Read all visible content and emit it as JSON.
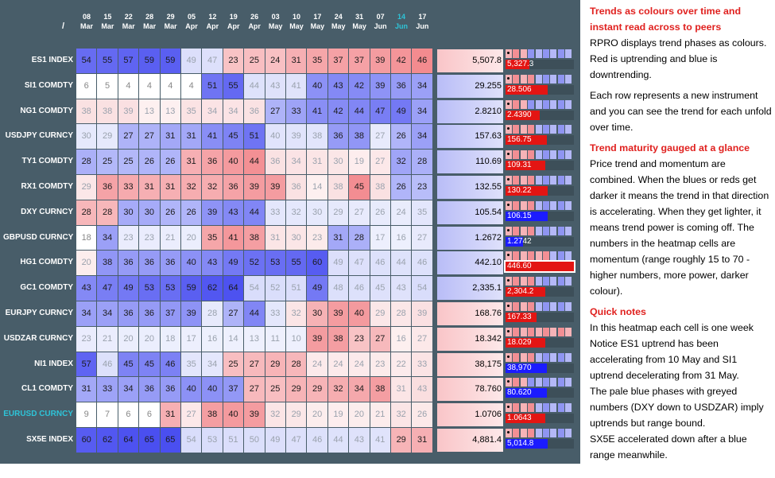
{
  "header": {
    "corner": "/",
    "dates": [
      {
        "day": "08",
        "month": "Mar"
      },
      {
        "day": "15",
        "month": "Mar"
      },
      {
        "day": "22",
        "month": "Mar"
      },
      {
        "day": "28",
        "month": "Mar"
      },
      {
        "day": "29",
        "month": "Mar"
      },
      {
        "day": "05",
        "month": "Apr"
      },
      {
        "day": "12",
        "month": "Apr"
      },
      {
        "day": "19",
        "month": "Apr"
      },
      {
        "day": "26",
        "month": "Apr"
      },
      {
        "day": "03",
        "month": "May"
      },
      {
        "day": "10",
        "month": "May"
      },
      {
        "day": "17",
        "month": "May"
      },
      {
        "day": "24",
        "month": "May"
      },
      {
        "day": "31",
        "month": "May"
      },
      {
        "day": "07",
        "month": "Jun"
      },
      {
        "day": "14",
        "month": "Jun"
      },
      {
        "day": "17",
        "month": "Jun"
      }
    ],
    "current_index": 15
  },
  "rows": [
    {
      "label": "ES1 INDEX",
      "values": [
        54,
        55,
        57,
        59,
        59,
        49,
        47,
        23,
        25,
        24,
        31,
        35,
        37,
        37,
        39,
        42,
        46
      ],
      "trend": [
        "u",
        "u",
        "u",
        "u",
        "u",
        "U",
        "U",
        "d",
        "d",
        "d",
        "d",
        "d",
        "d",
        "d",
        "d",
        "d",
        "d"
      ],
      "price": "5,507.8",
      "bar_text": "5,327.3",
      "bar_dir": "red",
      "bar_pct": 0.35,
      "sq": [
        "r",
        "r",
        "r",
        "b",
        "b",
        "b",
        "b",
        "b",
        "b"
      ]
    },
    {
      "label": "SI1 COMDTY",
      "values": [
        6,
        5,
        4,
        4,
        4,
        4,
        51,
        55,
        44,
        43,
        41,
        40,
        43,
        42,
        39,
        36,
        34
      ],
      "trend": [
        "n",
        "n",
        "n",
        "n",
        "n",
        "n",
        "u",
        "u",
        "U",
        "U",
        "U",
        "u",
        "u",
        "u",
        "u",
        "u",
        "u"
      ],
      "price": "29.255",
      "bar_text": "28.506",
      "bar_dir": "red",
      "bar_pct": 0.62,
      "sq": [
        "r",
        "r",
        "r",
        "r",
        "b",
        "b",
        "b",
        "b",
        "b"
      ]
    },
    {
      "label": "NG1 COMDTY",
      "values": [
        38,
        38,
        39,
        13,
        13,
        35,
        34,
        34,
        36,
        27,
        33,
        41,
        42,
        44,
        47,
        49,
        34
      ],
      "trend": [
        "D",
        "D",
        "D",
        "D",
        "D",
        "D",
        "D",
        "D",
        "D",
        "u",
        "u",
        "u",
        "u",
        "u",
        "u",
        "u",
        "u"
      ],
      "price": "2.8210",
      "bar_text": "2.4390",
      "bar_dir": "red",
      "bar_pct": 0.5,
      "sq": [
        "r",
        "r",
        "r",
        "b",
        "b",
        "b",
        "b",
        "b",
        "b"
      ]
    },
    {
      "label": "USDJPY CURNCY",
      "values": [
        30,
        29,
        27,
        27,
        31,
        31,
        41,
        45,
        51,
        40,
        39,
        38,
        36,
        38,
        27,
        26,
        34
      ],
      "trend": [
        "U",
        "U",
        "u",
        "u",
        "u",
        "u",
        "u",
        "u",
        "u",
        "U",
        "U",
        "U",
        "u",
        "u",
        "U",
        "u",
        "u"
      ],
      "price": "157.63",
      "bar_text": "156.75",
      "bar_dir": "red",
      "bar_pct": 0.6,
      "sq": [
        "r",
        "r",
        "r",
        "r",
        "b",
        "b",
        "b",
        "b",
        "b"
      ]
    },
    {
      "label": "TY1 COMDTY",
      "values": [
        28,
        25,
        25,
        26,
        26,
        31,
        36,
        40,
        44,
        36,
        34,
        31,
        30,
        19,
        27,
        32,
        28
      ],
      "trend": [
        "u",
        "u",
        "u",
        "u",
        "u",
        "d",
        "d",
        "d",
        "d",
        "D",
        "D",
        "D",
        "D",
        "D",
        "D",
        "u",
        "u"
      ],
      "price": "110.69",
      "bar_text": "109.31",
      "bar_dir": "red",
      "bar_pct": 0.58,
      "sq": [
        "r",
        "r",
        "r",
        "r",
        "b",
        "b",
        "b",
        "b",
        "b"
      ]
    },
    {
      "label": "RX1 COMDTY",
      "values": [
        29,
        36,
        33,
        31,
        31,
        32,
        32,
        36,
        39,
        39,
        36,
        14,
        38,
        45,
        38,
        26,
        23
      ],
      "trend": [
        "D",
        "d",
        "d",
        "d",
        "d",
        "d",
        "d",
        "d",
        "d",
        "d",
        "D",
        "D",
        "D",
        "d",
        "D",
        "u",
        "u"
      ],
      "price": "132.55",
      "bar_text": "130.22",
      "bar_dir": "red",
      "bar_pct": 0.62,
      "sq": [
        "r",
        "r",
        "r",
        "r",
        "b",
        "b",
        "b",
        "b",
        "b"
      ]
    },
    {
      "label": "DXY CURNCY",
      "values": [
        28,
        28,
        30,
        30,
        26,
        26,
        39,
        43,
        44,
        33,
        32,
        30,
        29,
        27,
        26,
        24,
        35
      ],
      "trend": [
        "d",
        "d",
        "u",
        "u",
        "u",
        "u",
        "u",
        "u",
        "u",
        "U",
        "U",
        "U",
        "U",
        "U",
        "U",
        "U",
        "U"
      ],
      "price": "105.54",
      "bar_text": "106.15",
      "bar_dir": "blue",
      "bar_pct": 0.62,
      "sq": [
        "r",
        "r",
        "r",
        "r",
        "b",
        "b",
        "b",
        "b",
        "b"
      ]
    },
    {
      "label": "GBPUSD CURNCY",
      "values": [
        18,
        34,
        23,
        23,
        21,
        20,
        35,
        41,
        38,
        31,
        30,
        23,
        31,
        28,
        17,
        16,
        27
      ],
      "trend": [
        "n",
        "u",
        "U",
        "U",
        "U",
        "U",
        "d",
        "d",
        "d",
        "D",
        "D",
        "D",
        "u",
        "u",
        "U",
        "U",
        "U"
      ],
      "price": "1.2672",
      "bar_text": "1.2742",
      "bar_dir": "blue",
      "bar_pct": 0.25,
      "sq": [
        "r",
        "r",
        "r",
        "r",
        "b",
        "b",
        "b",
        "b",
        "b"
      ]
    },
    {
      "label": "HG1 COMDTY",
      "values": [
        20,
        38,
        36,
        36,
        36,
        40,
        43,
        49,
        52,
        53,
        55,
        60,
        49,
        47,
        46,
        44,
        46
      ],
      "trend": [
        "D",
        "u",
        "u",
        "u",
        "u",
        "u",
        "u",
        "u",
        "u",
        "u",
        "u",
        "u",
        "U",
        "U",
        "U",
        "U",
        "U"
      ],
      "price": "442.10",
      "bar_text": "446.60",
      "bar_dir": "red",
      "bar_pct": 1.0,
      "sq": [
        "r",
        "r",
        "r",
        "r",
        "r",
        "r",
        "b",
        "b",
        "b"
      ]
    },
    {
      "label": "GC1 COMDTY",
      "values": [
        43,
        47,
        49,
        53,
        53,
        59,
        62,
        64,
        54,
        52,
        51,
        49,
        48,
        46,
        45,
        43,
        54
      ],
      "trend": [
        "u",
        "u",
        "u",
        "u",
        "u",
        "u",
        "u",
        "u",
        "U",
        "U",
        "U",
        "u",
        "U",
        "U",
        "U",
        "U",
        "U"
      ],
      "price": "2,335.1",
      "bar_text": "2,304.2",
      "bar_dir": "red",
      "bar_pct": 0.58,
      "sq": [
        "r",
        "r",
        "r",
        "r",
        "b",
        "b",
        "b",
        "b",
        "b"
      ]
    },
    {
      "label": "EURJPY CURNCY",
      "values": [
        34,
        34,
        36,
        36,
        37,
        39,
        28,
        27,
        44,
        33,
        32,
        30,
        39,
        40,
        29,
        28,
        39
      ],
      "trend": [
        "u",
        "u",
        "u",
        "u",
        "u",
        "u",
        "U",
        "u",
        "u",
        "U",
        "D",
        "d",
        "d",
        "d",
        "D",
        "D",
        "D"
      ],
      "price": "168.76",
      "bar_text": "167.33",
      "bar_dir": "red",
      "bar_pct": 0.45,
      "sq": [
        "r",
        "r",
        "r",
        "r",
        "b",
        "b",
        "b",
        "b",
        "b"
      ]
    },
    {
      "label": "USDZAR CURNCY",
      "values": [
        23,
        21,
        20,
        20,
        18,
        17,
        16,
        14,
        13,
        11,
        10,
        39,
        38,
        23,
        27,
        16,
        27
      ],
      "trend": [
        "U",
        "U",
        "U",
        "U",
        "U",
        "U",
        "U",
        "U",
        "U",
        "U",
        "U",
        "d",
        "d",
        "d",
        "d",
        "D",
        "D"
      ],
      "price": "18.342",
      "bar_text": "18.029",
      "bar_dir": "red",
      "bar_pct": 0.58,
      "sq": [
        "r",
        "r",
        "r",
        "r",
        "r",
        "r",
        "r",
        "r",
        "r"
      ]
    },
    {
      "label": "NI1 INDEX",
      "values": [
        57,
        46,
        45,
        45,
        46,
        35,
        34,
        25,
        27,
        29,
        28,
        24,
        24,
        24,
        23,
        22,
        33
      ],
      "trend": [
        "u",
        "U",
        "u",
        "u",
        "u",
        "U",
        "U",
        "d",
        "d",
        "d",
        "d",
        "D",
        "D",
        "D",
        "D",
        "D",
        "D"
      ],
      "price": "38,175",
      "bar_text": "38,970",
      "bar_dir": "blue",
      "bar_pct": 0.6,
      "sq": [
        "r",
        "r",
        "r",
        "r",
        "b",
        "b",
        "b",
        "b",
        "b"
      ]
    },
    {
      "label": "CL1 COMDTY",
      "values": [
        31,
        33,
        34,
        36,
        36,
        40,
        40,
        37,
        27,
        25,
        29,
        29,
        32,
        34,
        38,
        31,
        43
      ],
      "trend": [
        "u",
        "u",
        "u",
        "u",
        "u",
        "u",
        "u",
        "u",
        "d",
        "d",
        "d",
        "d",
        "d",
        "d",
        "d",
        "D",
        "D"
      ],
      "price": "78.760",
      "bar_text": "80.620",
      "bar_dir": "blue",
      "bar_pct": 0.6,
      "sq": [
        "r",
        "r",
        "r",
        "b",
        "b",
        "b",
        "b",
        "b",
        "b"
      ]
    },
    {
      "label": "EURUSD CURNCY",
      "values": [
        9,
        7,
        6,
        6,
        31,
        27,
        38,
        40,
        39,
        32,
        29,
        20,
        19,
        20,
        21,
        32,
        26
      ],
      "trend": [
        "n",
        "n",
        "n",
        "n",
        "d",
        "D",
        "d",
        "d",
        "d",
        "D",
        "D",
        "D",
        "D",
        "D",
        "D",
        "D",
        "D"
      ],
      "price": "1.0706",
      "bar_text": "1.0643",
      "bar_dir": "red",
      "bar_pct": 0.58,
      "sq": [
        "r",
        "r",
        "r",
        "r",
        "b",
        "b",
        "b",
        "b",
        "b"
      ]
    },
    {
      "label": "SX5E INDEX",
      "values": [
        60,
        62,
        64,
        65,
        65,
        54,
        53,
        51,
        50,
        49,
        47,
        46,
        44,
        43,
        41,
        29,
        31
      ],
      "trend": [
        "u",
        "u",
        "u",
        "u",
        "u",
        "U",
        "U",
        "U",
        "U",
        "U",
        "U",
        "U",
        "U",
        "U",
        "U",
        "d",
        "d"
      ],
      "price": "4,881.4",
      "bar_text": "5,014.8",
      "bar_dir": "blue",
      "bar_pct": 0.62,
      "sq": [
        "r",
        "r",
        "r",
        "r",
        "b",
        "b",
        "b",
        "b",
        "b"
      ]
    }
  ],
  "selected_row": 14,
  "notes": {
    "h1": "Trends as colours over time and instant read across to peers",
    "p1": "RPRO displays trend phases as colours. Red is uptrending and blue is downtrending.",
    "p2": "Each row represents a new instrument and you can see the trend for each unfold over time.",
    "h2": "Trend maturity gauged at a glance",
    "p3": "Price trend and momentum are combined.  When the blues or reds get darker it means the trend in that direction is accelerating.  When they get lighter, it means trend power is coming off.  The numbers in the heatmap cells are momentum (range roughly 15 to 70 - higher numbers, more power, darker colour).",
    "h3": "Quick notes",
    "p4": "In this heatmap each cell is one week",
    "p5": "Notice ES1 uptrend has been accelerating from 10 May and SI1 uptrend decelerating from 31 May.",
    "p6": "The pale blue phases with greyed numbers (DXY down to USDZAR) imply uptrends  but range bound.",
    "p7": "SX5E accelerated down after a blue range meanwhile."
  }
}
